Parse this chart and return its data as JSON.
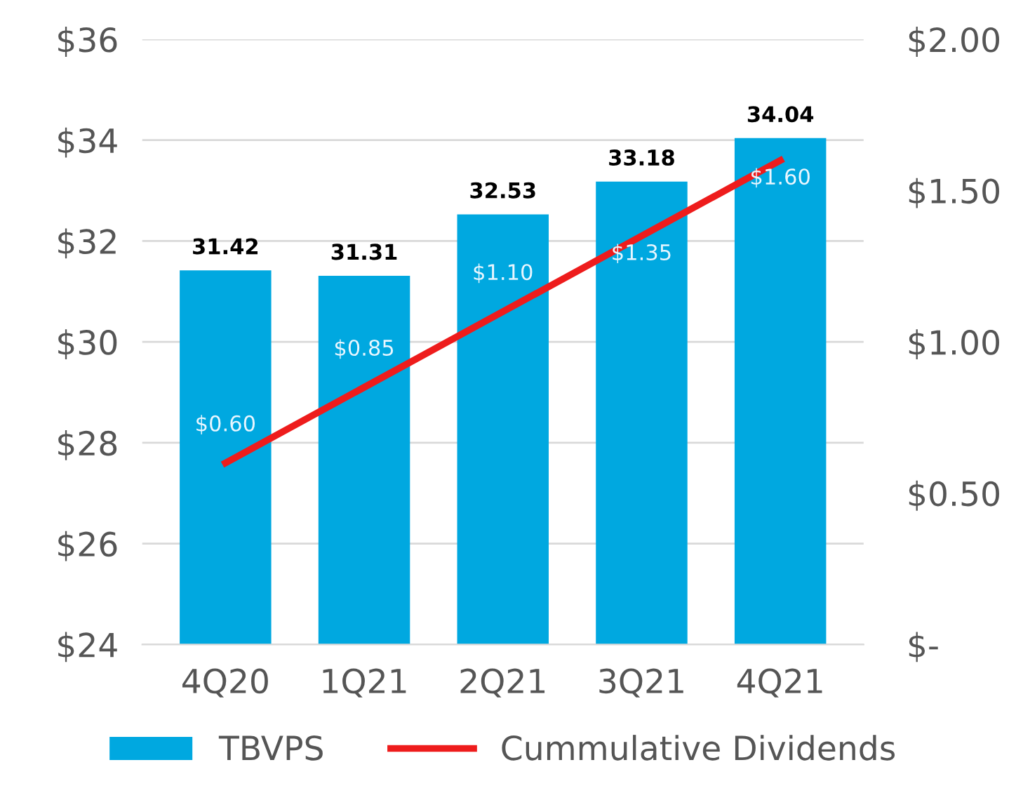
{
  "chart_data": {
    "type": "bar",
    "categories": [
      "4Q20",
      "1Q21",
      "2Q21",
      "3Q21",
      "4Q21"
    ],
    "series": [
      {
        "name": "TBVPS",
        "color": "#00a8e0",
        "values": [
          31.42,
          31.31,
          32.53,
          33.18,
          34.04
        ]
      },
      {
        "name": "Cummulative Dividends",
        "type": "line",
        "axis": "y2",
        "color": "#ee1c1c",
        "values": [
          0.6,
          0.85,
          1.1,
          1.35,
          1.6
        ],
        "value_labels": [
          "$0.60",
          "$0.85",
          "$1.10",
          "$1.35",
          "$1.60"
        ]
      }
    ],
    "data_labels": true,
    "ylim": [
      24,
      36
    ],
    "yticks": [
      {
        "value": 24,
        "label": "$24"
      },
      {
        "value": 26,
        "label": "$26"
      },
      {
        "value": 28,
        "label": "$28"
      },
      {
        "value": 30,
        "label": "$30"
      },
      {
        "value": 32,
        "label": "$32"
      },
      {
        "value": 34,
        "label": "$34"
      },
      {
        "value": 36,
        "label": "$36"
      }
    ],
    "y2lim": [
      0,
      2
    ],
    "y2ticks": [
      {
        "value": 0,
        "label": "$-"
      },
      {
        "value": 0.5,
        "label": "$0.50"
      },
      {
        "value": 1,
        "label": "$1.00"
      },
      {
        "value": 1.5,
        "label": "$1.50"
      },
      {
        "value": 2,
        "label": "$2.00"
      }
    ],
    "grid": "y",
    "legend": "bottom",
    "marker": "none",
    "line_style": "solid"
  }
}
